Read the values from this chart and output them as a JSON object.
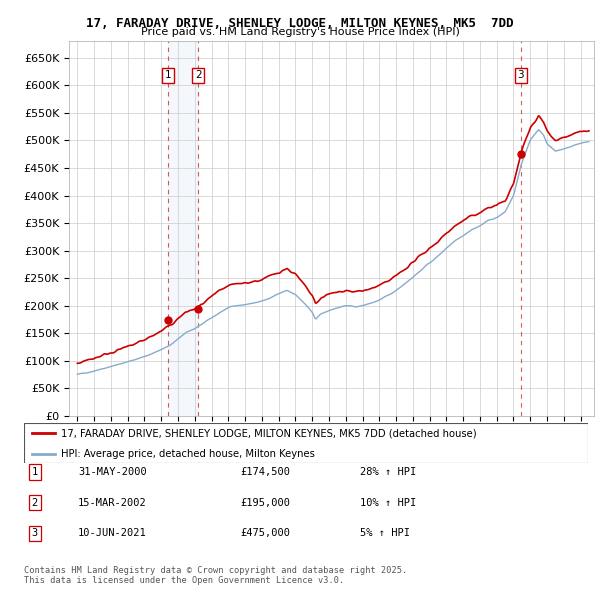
{
  "title_line1": "17, FARADAY DRIVE, SHENLEY LODGE, MILTON KEYNES, MK5  7DD",
  "title_line2": "Price paid vs. HM Land Registry's House Price Index (HPI)",
  "legend_line1": "17, FARADAY DRIVE, SHENLEY LODGE, MILTON KEYNES, MK5 7DD (detached house)",
  "legend_line2": "HPI: Average price, detached house, Milton Keynes",
  "sale_color": "#cc0000",
  "hpi_color": "#88aacc",
  "footer_text": "Contains HM Land Registry data © Crown copyright and database right 2025.\nThis data is licensed under the Open Government Licence v3.0.",
  "transactions": [
    {
      "id": 1,
      "date": "31-MAY-2000",
      "price": 174500,
      "hpi_rel": "28% ↑ HPI",
      "year": 2000.41
    },
    {
      "id": 2,
      "date": "15-MAR-2002",
      "price": 195000,
      "hpi_rel": "10% ↑ HPI",
      "year": 2002.2
    },
    {
      "id": 3,
      "date": "10-JUN-2021",
      "price": 475000,
      "hpi_rel": "5% ↑ HPI",
      "year": 2021.44
    }
  ],
  "ylim": [
    0,
    680000
  ],
  "yticks": [
    0,
    50000,
    100000,
    150000,
    200000,
    250000,
    300000,
    350000,
    400000,
    450000,
    500000,
    550000,
    600000,
    650000
  ],
  "xlim": [
    1994.5,
    2025.8
  ],
  "xticks": [
    1995,
    1996,
    1997,
    1998,
    1999,
    2000,
    2001,
    2002,
    2003,
    2004,
    2005,
    2006,
    2007,
    2008,
    2009,
    2010,
    2011,
    2012,
    2013,
    2014,
    2015,
    2016,
    2017,
    2018,
    2019,
    2020,
    2021,
    2022,
    2023,
    2024,
    2025
  ]
}
